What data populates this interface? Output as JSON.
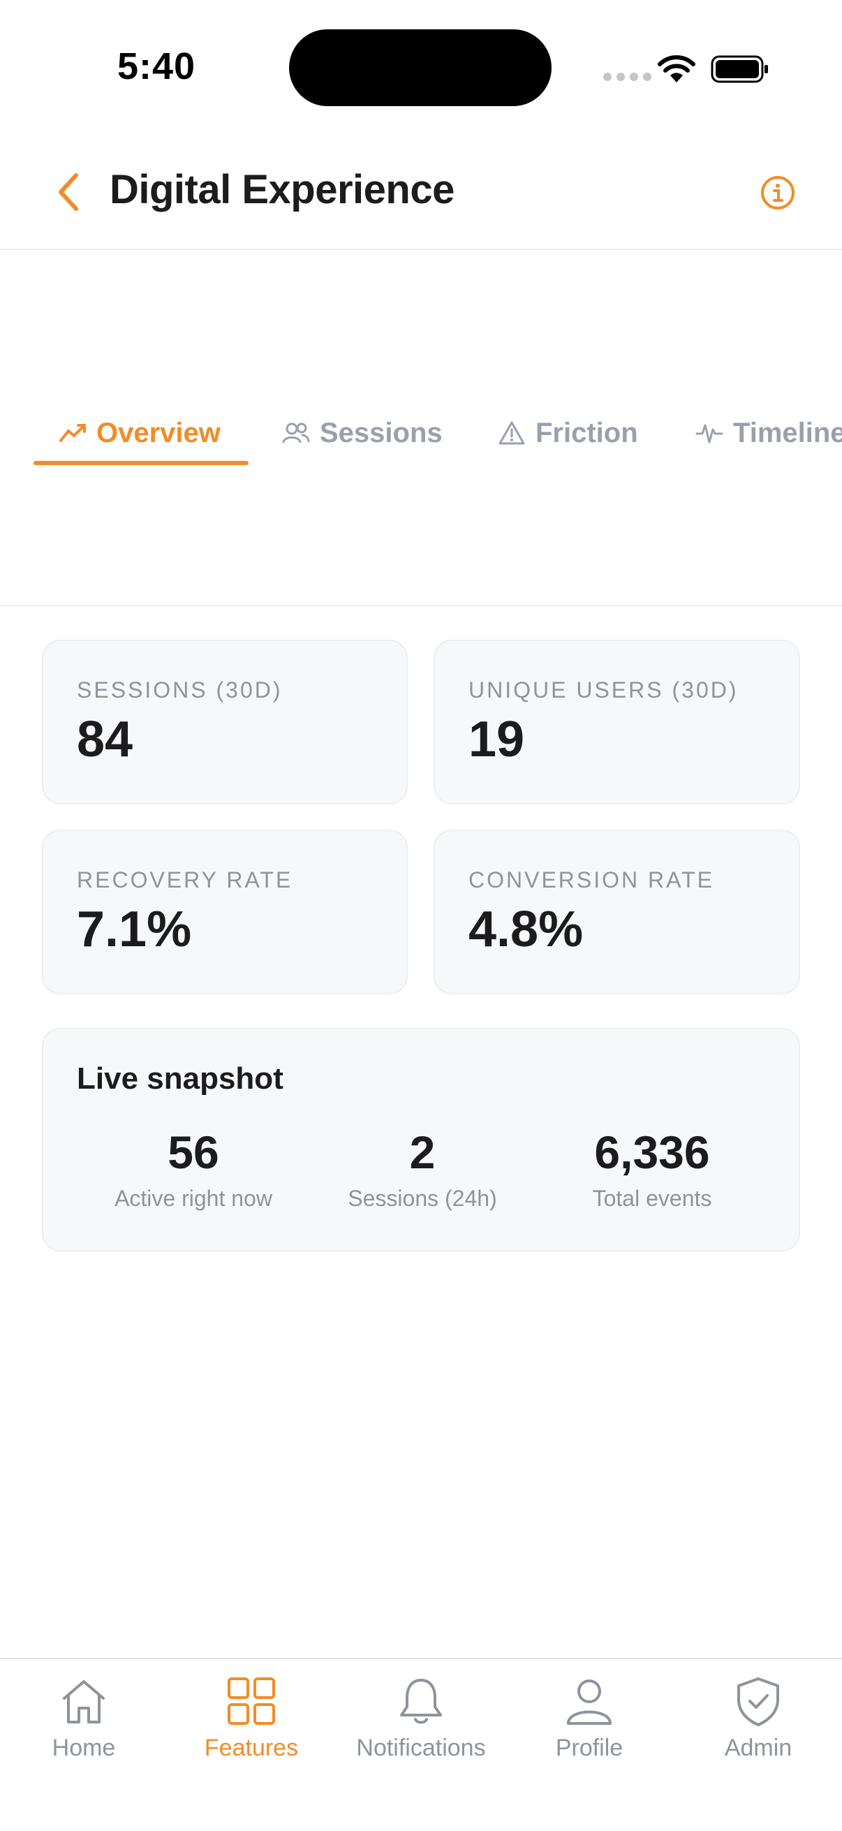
{
  "status": {
    "time": "5:40"
  },
  "header": {
    "title": "Digital Experience"
  },
  "tabs": [
    {
      "label": "Overview",
      "icon": "trend-line-icon",
      "active": true
    },
    {
      "label": "Sessions",
      "icon": "users-icon",
      "active": false
    },
    {
      "label": "Friction",
      "icon": "warning-triangle-icon",
      "active": false
    },
    {
      "label": "Timeline",
      "icon": "pulse-icon",
      "active": false
    }
  ],
  "stats": [
    {
      "label": "SESSIONS (30D)",
      "value": "84"
    },
    {
      "label": "UNIQUE USERS (30D)",
      "value": "19"
    },
    {
      "label": "RECOVERY RATE",
      "value": "7.1%"
    },
    {
      "label": "CONVERSION RATE",
      "value": "4.8%"
    }
  ],
  "snapshot": {
    "title": "Live snapshot",
    "items": [
      {
        "value": "56",
        "label": "Active right now"
      },
      {
        "value": "2",
        "label": "Sessions (24h)"
      },
      {
        "value": "6,336",
        "label": "Total events"
      }
    ]
  },
  "nav": [
    {
      "label": "Home",
      "icon": "home-icon",
      "active": false
    },
    {
      "label": "Features",
      "icon": "grid-icon",
      "active": true
    },
    {
      "label": "Notifications",
      "icon": "bell-icon",
      "active": false
    },
    {
      "label": "Profile",
      "icon": "person-icon",
      "active": false
    },
    {
      "label": "Admin",
      "icon": "shield-check-icon",
      "active": false
    }
  ],
  "colors": {
    "accent": "#f28c28",
    "muted": "#9aa0ab",
    "card_bg": "#f7f8fa"
  }
}
